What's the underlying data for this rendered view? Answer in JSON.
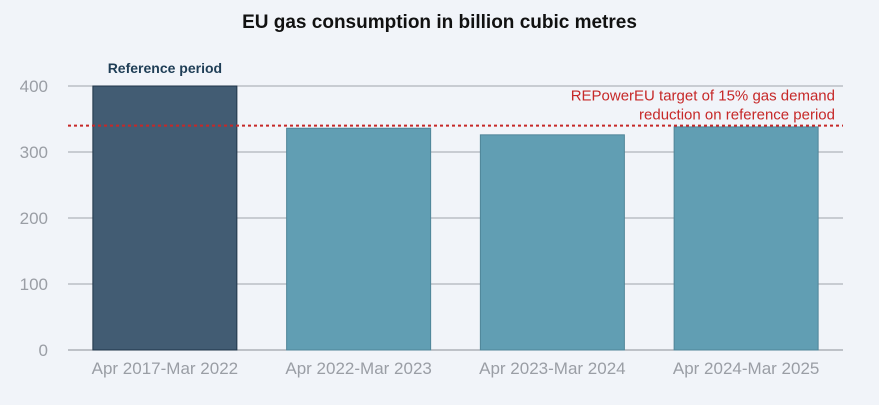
{
  "chart_data": {
    "type": "bar",
    "title": "EU gas consumption in billion cubic metres",
    "categories": [
      "Apr 2017-Mar 2022",
      "Apr 2022-Mar 2023",
      "Apr 2023-Mar 2024",
      "Apr 2024-Mar 2025"
    ],
    "values": [
      400,
      336,
      326,
      338
    ],
    "ylim": [
      0,
      400
    ],
    "yticks": [
      0,
      100,
      200,
      300,
      400
    ],
    "grid": "horizontal",
    "highlight": {
      "index": 0,
      "label": "Reference period",
      "color": "#425c73"
    },
    "bar_color": "#619eb3",
    "reference_line": {
      "value": 340,
      "label_lines": [
        "REPowerEU target of 15% gas demand",
        "reduction on reference period"
      ],
      "color": "#c62828",
      "style": "dotted"
    }
  }
}
